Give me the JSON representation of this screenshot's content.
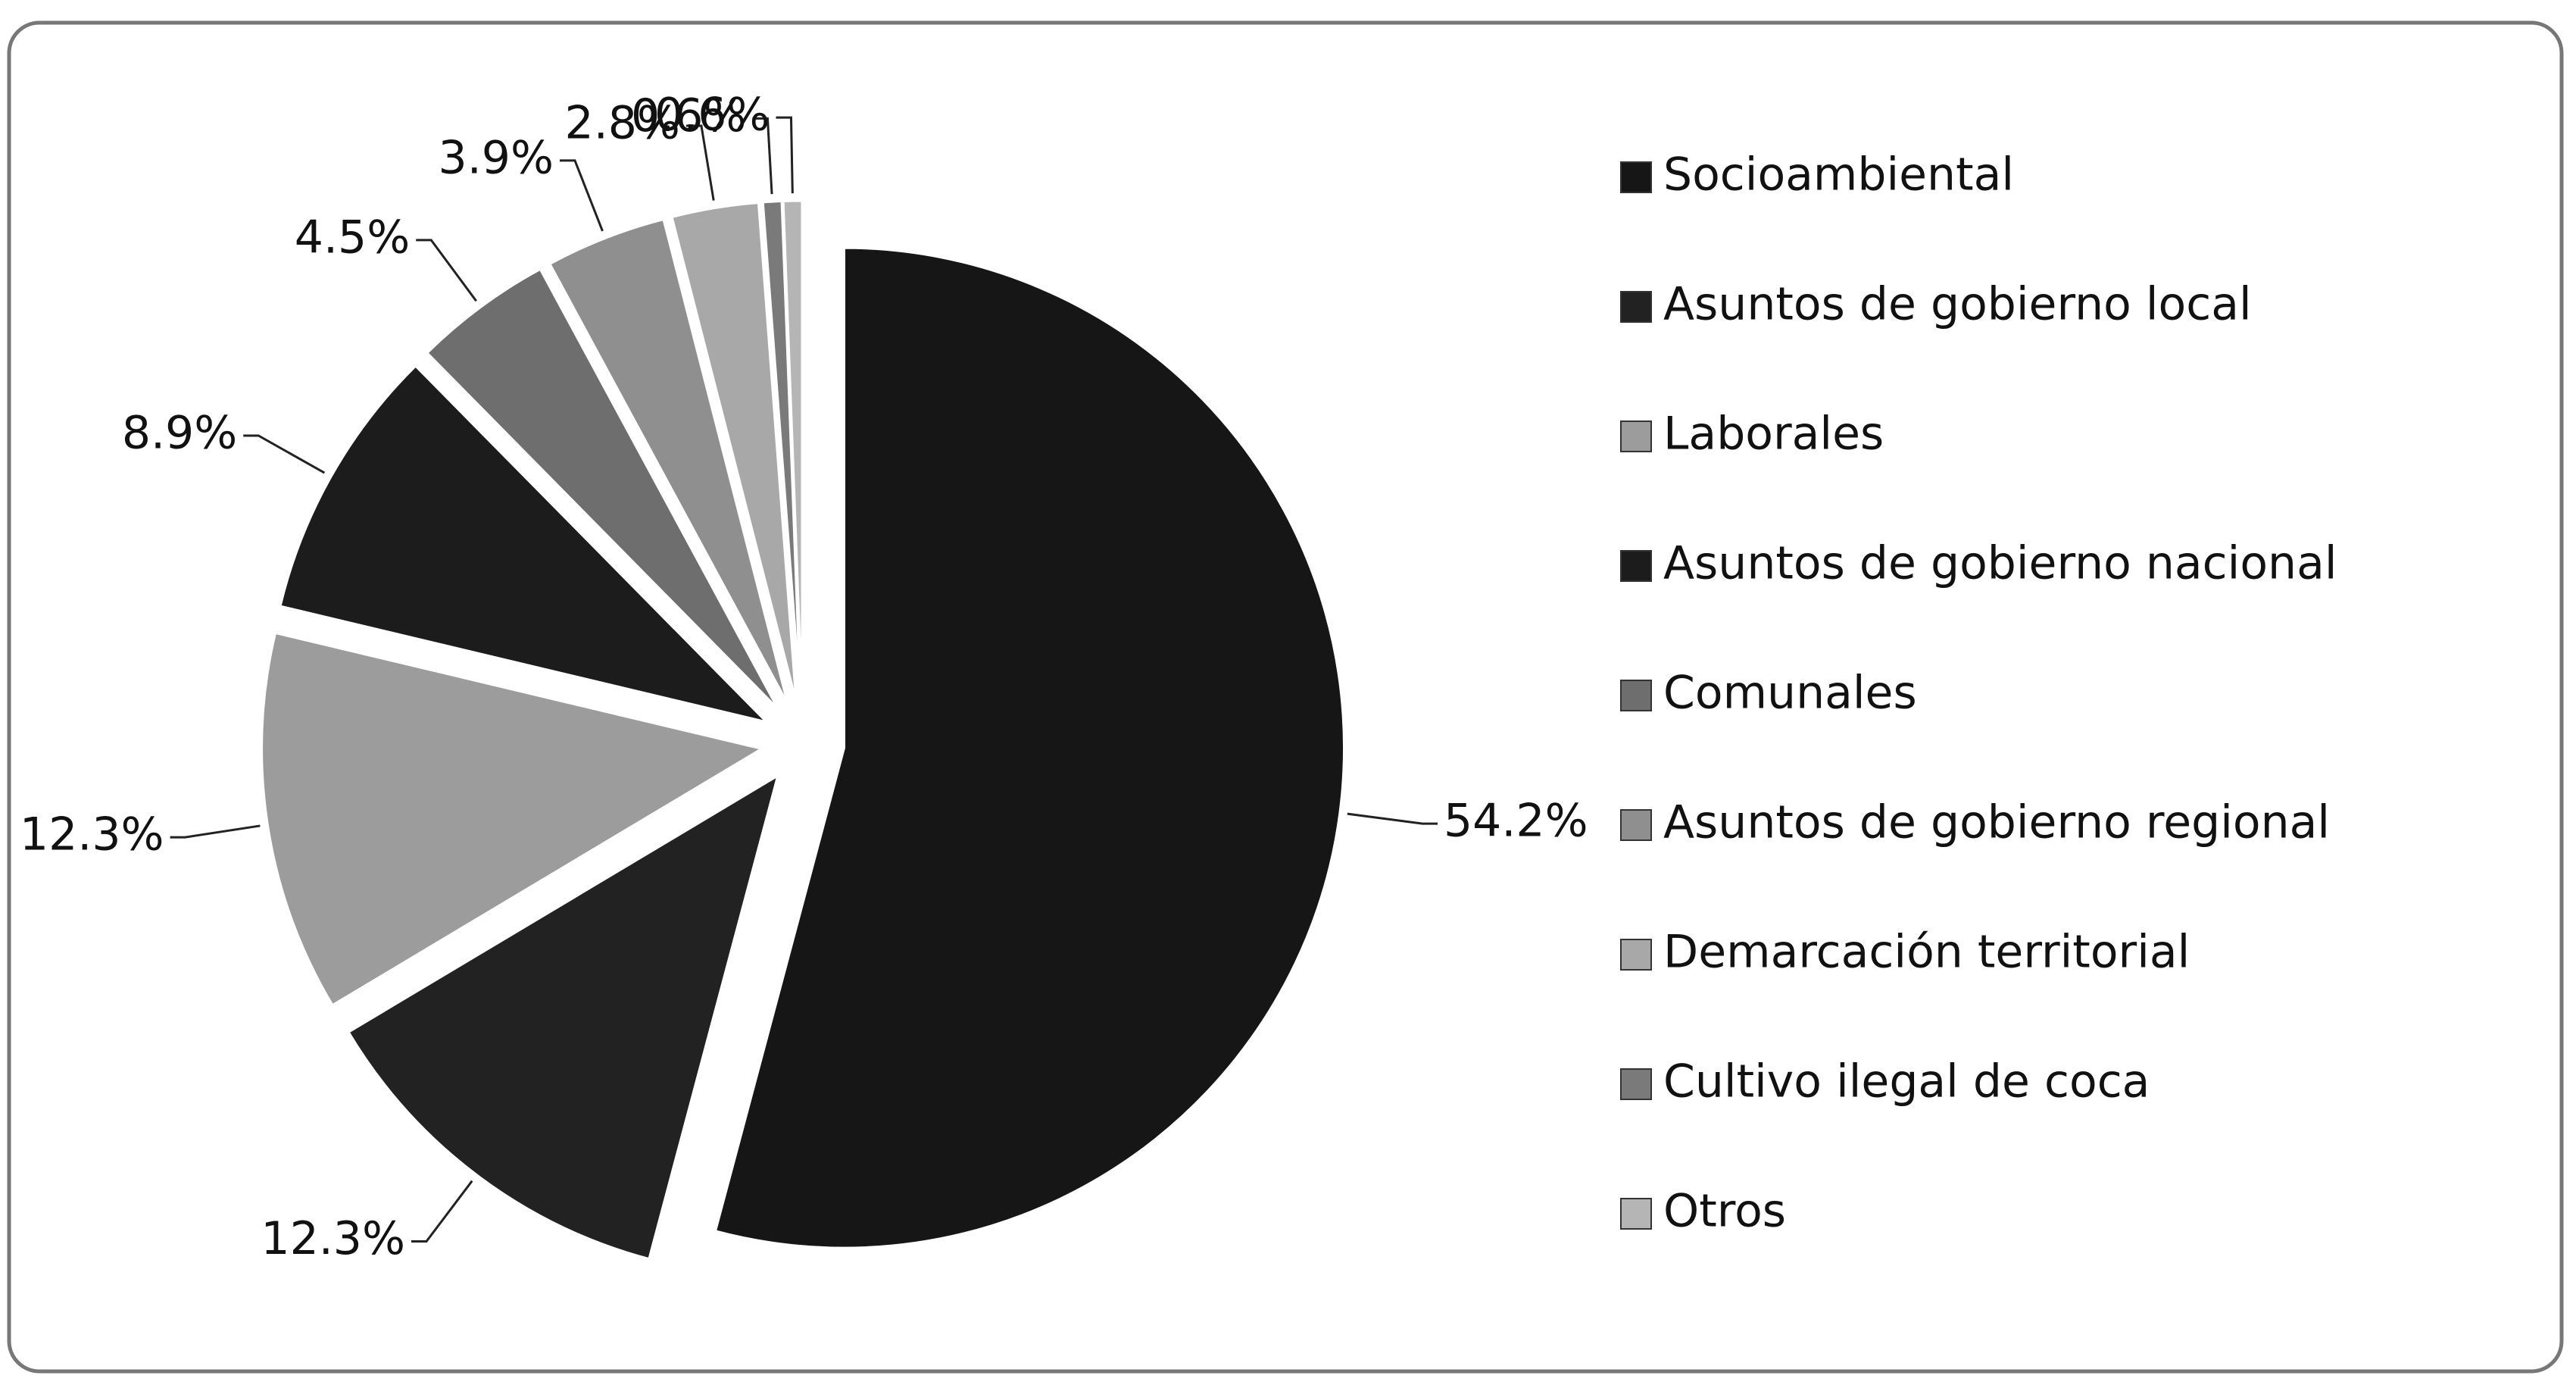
{
  "chart_data": {
    "type": "pie",
    "categories": [
      "Socioambiental",
      "Asuntos de gobierno local",
      "Laborales",
      "Asuntos de gobierno nacional",
      "Comunales",
      "Asuntos de gobierno regional",
      "Demarcación territorial",
      "Cultivo ilegal de coca",
      "Otros"
    ],
    "values": [
      54.2,
      12.3,
      12.3,
      8.9,
      4.5,
      3.9,
      2.8,
      0.6,
      0.6
    ],
    "value_labels": [
      "54.2%",
      "12.3%",
      "12.3%",
      "8.9%",
      "4.5%",
      "3.9%",
      "2.8%",
      "0.6%",
      "0.6%"
    ],
    "colors": [
      "#161616",
      "#222222",
      "#9c9c9c",
      "#1c1c1c",
      "#6e6e6e",
      "#8f8f8f",
      "#a8a8a8",
      "#7a7a7a",
      "#b5b5b5"
    ],
    "legend": "right"
  }
}
